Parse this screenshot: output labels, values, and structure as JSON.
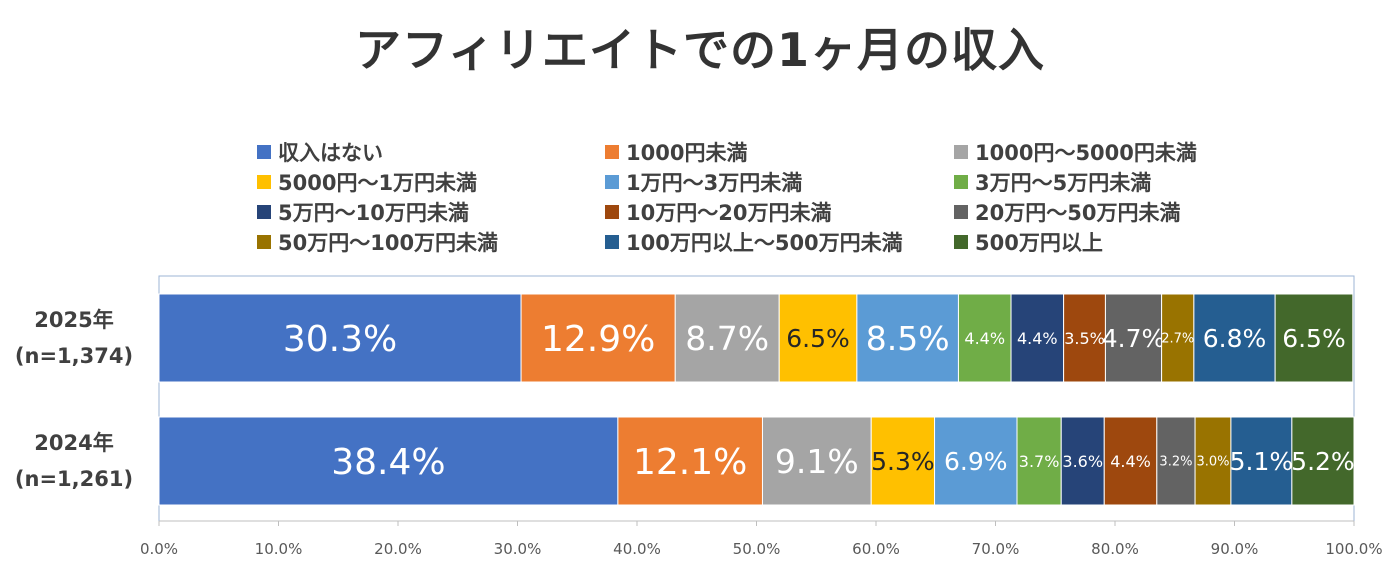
{
  "chart_data": {
    "type": "bar",
    "orientation": "horizontal",
    "stacked": true,
    "title": "アフィリエイトでの1ヶ月の収入",
    "categories": [
      {
        "label": "2025年",
        "sublabel": "(n=1,374)"
      },
      {
        "label": "2024年",
        "sublabel": "(n=1,261)"
      }
    ],
    "series": [
      {
        "name": "収入はない",
        "color": "#4472C4",
        "values": [
          30.3,
          38.4
        ],
        "labels": [
          "30.3%",
          "38.4%"
        ]
      },
      {
        "name": "1000円未満",
        "color": "#ED7D31",
        "values": [
          12.9,
          12.1
        ],
        "labels": [
          "12.9%",
          "12.1%"
        ]
      },
      {
        "name": "1000円～5000円未満",
        "color": "#A5A5A5",
        "values": [
          8.7,
          9.1
        ],
        "labels": [
          "8.7%",
          "9.1%"
        ]
      },
      {
        "name": "5000円～1万円未満",
        "color": "#FFC000",
        "values": [
          6.5,
          5.3
        ],
        "labels": [
          "6.5%",
          "5.3%"
        ]
      },
      {
        "name": "1万円～3万円未満",
        "color": "#5B9BD5",
        "values": [
          8.5,
          6.9
        ],
        "labels": [
          "8.5%",
          "6.9%"
        ]
      },
      {
        "name": "3万円～5万円未満",
        "color": "#70AD47",
        "values": [
          4.4,
          3.7
        ],
        "labels": [
          "4.4%",
          "3.7%"
        ]
      },
      {
        "name": "5万円～10万円未満",
        "color": "#264478",
        "values": [
          4.4,
          3.6
        ],
        "labels": [
          "4.4%",
          "3.6%"
        ]
      },
      {
        "name": "10万円～20万円未満",
        "color": "#9E480E",
        "values": [
          3.5,
          4.4
        ],
        "labels": [
          "3.5%",
          "4.4%"
        ]
      },
      {
        "name": "20万円～50万円未満",
        "color": "#636363",
        "values": [
          4.7,
          3.2
        ],
        "labels": [
          "4.7%",
          "3.2%"
        ]
      },
      {
        "name": "50万円～100万円未満",
        "color": "#997300",
        "values": [
          2.7,
          3.0
        ],
        "labels": [
          "2.7%",
          "3.0%"
        ]
      },
      {
        "name": "100万円以上～500万円未満",
        "color": "#255E91",
        "values": [
          6.8,
          5.1
        ],
        "labels": [
          "6.8%",
          "5.1%"
        ]
      },
      {
        "name": "500万円以上",
        "color": "#43682B",
        "values": [
          6.5,
          5.2
        ],
        "labels": [
          "6.5%",
          "5.2%"
        ]
      }
    ],
    "xlim": [
      0,
      100
    ],
    "xticks": [
      0,
      10,
      20,
      30,
      40,
      50,
      60,
      70,
      80,
      90,
      100
    ],
    "xtick_labels": [
      "0.0%",
      "10.0%",
      "20.0%",
      "30.0%",
      "40.0%",
      "50.0%",
      "60.0%",
      "70.0%",
      "80.0%",
      "90.0%",
      "100.0%"
    ],
    "xlabel": "",
    "ylabel": "",
    "grid": false,
    "legend_position": "top",
    "legend_columns": 3
  }
}
